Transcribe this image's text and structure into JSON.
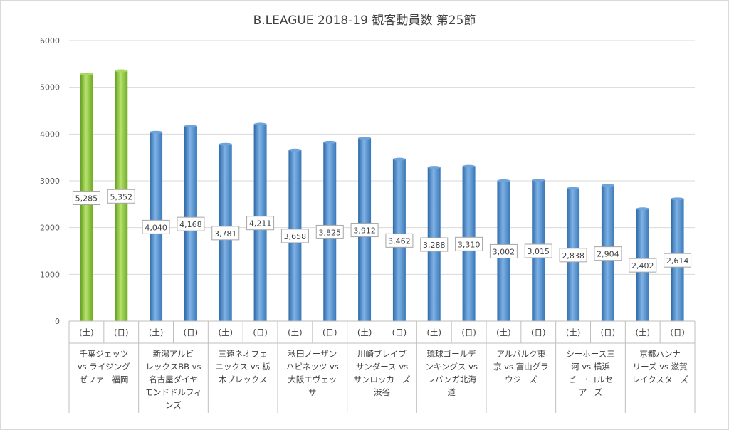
{
  "chart_data": {
    "type": "bar",
    "title": "B.LEAGUE 2018-19 観客動員数 第25節",
    "ylim": [
      0,
      6000
    ],
    "yticks": [
      "0",
      "1000",
      "2000",
      "3000",
      "4000",
      "5000",
      "6000"
    ],
    "grid": true,
    "colors": {
      "highlight": "#8cc63f",
      "default": "#4f8fd0",
      "grid": "#d9d9d9",
      "axis": "#bfbfbf"
    },
    "groups": [
      {
        "name": [
          "千葉ジェッツ",
          "vs ライジング",
          "ゼファー福岡"
        ],
        "highlight": true,
        "days": [
          "(土)",
          "(日)"
        ],
        "values": [
          5285,
          5352
        ],
        "labels": [
          "5,285",
          "5,352"
        ]
      },
      {
        "name": [
          "新潟アルビ",
          "レックスBB vs",
          "名古屋ダイヤ",
          "モンドドルフィ",
          "ンズ"
        ],
        "highlight": false,
        "days": [
          "(土)",
          "(日)"
        ],
        "values": [
          4040,
          4168
        ],
        "labels": [
          "4,040",
          "4,168"
        ]
      },
      {
        "name": [
          "三遠ネオフェ",
          "ニックス vs 栃",
          "木ブレックス"
        ],
        "highlight": false,
        "days": [
          "(土)",
          "(日)"
        ],
        "values": [
          3781,
          4211
        ],
        "labels": [
          "3,781",
          "4,211"
        ]
      },
      {
        "name": [
          "秋田ノーザン",
          "ハピネッツ vs",
          "大阪エヴェッ",
          "サ"
        ],
        "highlight": false,
        "days": [
          "(土)",
          "(日)"
        ],
        "values": [
          3658,
          3825
        ],
        "labels": [
          "3,658",
          "3,825"
        ]
      },
      {
        "name": [
          "川崎ブレイブ",
          "サンダース vs",
          "サンロッカーズ",
          "渋谷"
        ],
        "highlight": false,
        "days": [
          "(土)",
          "(日)"
        ],
        "values": [
          3912,
          3462
        ],
        "labels": [
          "3,912",
          "3,462"
        ]
      },
      {
        "name": [
          "琉球ゴールデ",
          "ンキングス vs",
          "レバンガ北海",
          "道"
        ],
        "highlight": false,
        "days": [
          "(土)",
          "(日)"
        ],
        "values": [
          3288,
          3310
        ],
        "labels": [
          "3,288",
          "3,310"
        ]
      },
      {
        "name": [
          "アルバルク東",
          "京 vs 富山グラ",
          "ウジーズ"
        ],
        "highlight": false,
        "days": [
          "(土)",
          "(日)"
        ],
        "values": [
          3002,
          3015
        ],
        "labels": [
          "3,002",
          "3,015"
        ]
      },
      {
        "name": [
          "シーホース三",
          "河 vs 横浜",
          "ビー･コルセ",
          "アーズ"
        ],
        "highlight": false,
        "days": [
          "(土)",
          "(日)"
        ],
        "values": [
          2838,
          2904
        ],
        "labels": [
          "2,838",
          "2,904"
        ]
      },
      {
        "name": [
          "京都ハンナ",
          "リーズ vs 滋賀",
          "レイクスターズ"
        ],
        "highlight": false,
        "days": [
          "(土)",
          "(日)"
        ],
        "values": [
          2402,
          2614
        ],
        "labels": [
          "2,402",
          "2,614"
        ]
      }
    ]
  }
}
